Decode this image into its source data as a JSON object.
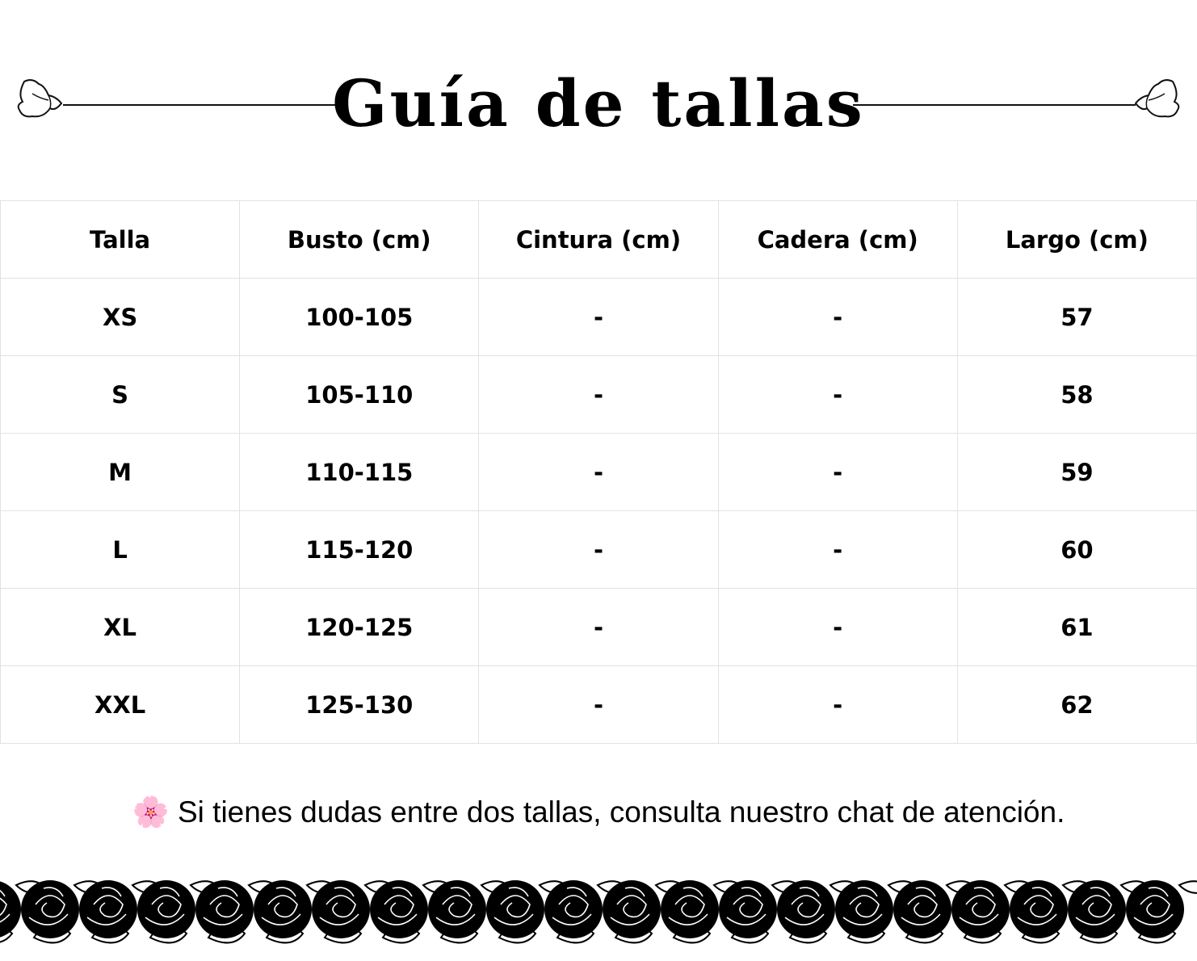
{
  "title": "Guía de tallas",
  "table": {
    "headers": [
      "Talla",
      "Busto (cm)",
      "Cintura (cm)",
      "Cadera (cm)",
      "Largo (cm)"
    ],
    "rows": [
      [
        "XS",
        "100-105",
        "-",
        "-",
        "57"
      ],
      [
        "S",
        "105-110",
        "-",
        "-",
        "58"
      ],
      [
        "M",
        "110-115",
        "-",
        "-",
        "59"
      ],
      [
        "L",
        "115-120",
        "-",
        "-",
        "60"
      ],
      [
        "XL",
        "120-125",
        "-",
        "-",
        "61"
      ],
      [
        "XXL",
        "125-130",
        "-",
        "-",
        "62"
      ]
    ]
  },
  "note": {
    "icon": "cherry-blossom-icon",
    "emoji": "🌸",
    "text": "Si tienes dudas entre dos tallas, consulta nuestro chat de atención."
  },
  "decoration": {
    "border": "black-roses-border-icon"
  }
}
